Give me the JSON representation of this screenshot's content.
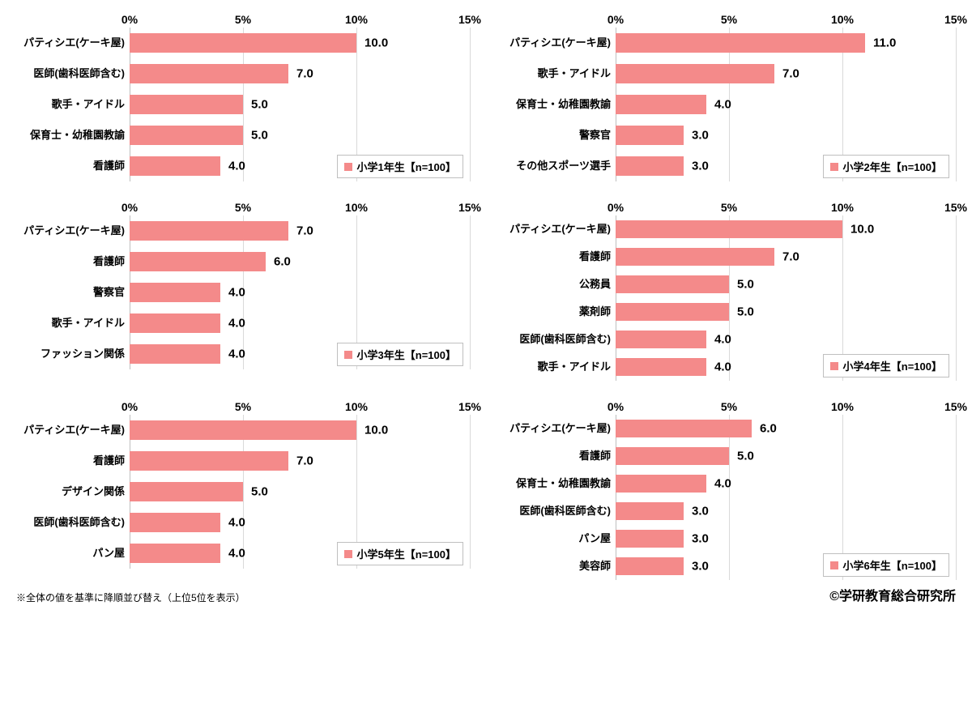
{
  "xmax": 15,
  "xtick_step": 5,
  "xticks": [
    "0%",
    "5%",
    "10%",
    "15%"
  ],
  "bar_color": "#f48a8a",
  "grid_color": "#d9d9d9",
  "axis_color": "#bfbfbf",
  "value_fontsize": 15,
  "label_fontsize": 13,
  "tick_fontsize": 14,
  "tick_fontweight": 700,
  "background_color": "#ffffff",
  "charts": [
    {
      "legend": "小学1年生【n=100】",
      "items": [
        {
          "label": "パティシエ(ケーキ屋)",
          "value": 10.0,
          "display": "10.0"
        },
        {
          "label": "医師(歯科医師含む)",
          "value": 7.0,
          "display": "7.0"
        },
        {
          "label": "歌手・アイドル",
          "value": 5.0,
          "display": "5.0"
        },
        {
          "label": "保育士・幼稚園教諭",
          "value": 5.0,
          "display": "5.0"
        },
        {
          "label": "看護師",
          "value": 4.0,
          "display": "4.0"
        }
      ]
    },
    {
      "legend": "小学2年生【n=100】",
      "items": [
        {
          "label": "パティシエ(ケーキ屋)",
          "value": 11.0,
          "display": "11.0"
        },
        {
          "label": "歌手・アイドル",
          "value": 7.0,
          "display": "7.0"
        },
        {
          "label": "保育士・幼稚園教諭",
          "value": 4.0,
          "display": "4.0"
        },
        {
          "label": "警察官",
          "value": 3.0,
          "display": "3.0"
        },
        {
          "label": "その他スポーツ選手",
          "value": 3.0,
          "display": "3.0"
        }
      ]
    },
    {
      "legend": "小学3年生【n=100】",
      "items": [
        {
          "label": "パティシエ(ケーキ屋)",
          "value": 7.0,
          "display": "7.0"
        },
        {
          "label": "看護師",
          "value": 6.0,
          "display": "6.0"
        },
        {
          "label": "警察官",
          "value": 4.0,
          "display": "4.0"
        },
        {
          "label": "歌手・アイドル",
          "value": 4.0,
          "display": "4.0"
        },
        {
          "label": "ファッション関係",
          "value": 4.0,
          "display": "4.0"
        }
      ]
    },
    {
      "legend": "小学4年生【n=100】",
      "compact": true,
      "items": [
        {
          "label": "パティシエ(ケーキ屋)",
          "value": 10.0,
          "display": "10.0"
        },
        {
          "label": "看護師",
          "value": 7.0,
          "display": "7.0"
        },
        {
          "label": "公務員",
          "value": 5.0,
          "display": "5.0"
        },
        {
          "label": "薬剤師",
          "value": 5.0,
          "display": "5.0"
        },
        {
          "label": "医師(歯科医師含む)",
          "value": 4.0,
          "display": "4.0"
        },
        {
          "label": "歌手・アイドル",
          "value": 4.0,
          "display": "4.0"
        }
      ]
    },
    {
      "legend": "小学5年生【n=100】",
      "items": [
        {
          "label": "パティシエ(ケーキ屋)",
          "value": 10.0,
          "display": "10.0"
        },
        {
          "label": "看護師",
          "value": 7.0,
          "display": "7.0"
        },
        {
          "label": "デザイン関係",
          "value": 5.0,
          "display": "5.0"
        },
        {
          "label": "医師(歯科医師含む)",
          "value": 4.0,
          "display": "4.0"
        },
        {
          "label": "パン屋",
          "value": 4.0,
          "display": "4.0"
        }
      ]
    },
    {
      "legend": "小学6年生【n=100】",
      "compact": true,
      "items": [
        {
          "label": "パティシエ(ケーキ屋)",
          "value": 6.0,
          "display": "6.0"
        },
        {
          "label": "看護師",
          "value": 5.0,
          "display": "5.0"
        },
        {
          "label": "保育士・幼稚園教諭",
          "value": 4.0,
          "display": "4.0"
        },
        {
          "label": "医師(歯科医師含む)",
          "value": 3.0,
          "display": "3.0"
        },
        {
          "label": "パン屋",
          "value": 3.0,
          "display": "3.0"
        },
        {
          "label": "美容師",
          "value": 3.0,
          "display": "3.0"
        }
      ]
    }
  ],
  "footnote": "※全体の値を基準に降順並び替え（上位5位を表示）",
  "copyright": "©学研教育総合研究所"
}
